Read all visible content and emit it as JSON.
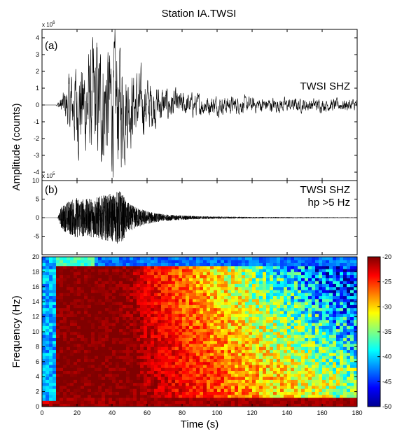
{
  "chart_data": [
    {
      "type": "line",
      "panel_tag": "(a)",
      "title": "Station IA.TWSI",
      "trace_label": "TWSI SHZ",
      "trace_label_line2": "",
      "ylabel": "Amplitude (counts)",
      "multiplier": "x 10",
      "multiplier_exp": "6",
      "xlim": [
        0,
        180
      ],
      "ylim": [
        -4.5,
        4.5
      ],
      "yticks": [
        "4",
        "3",
        "2",
        "1",
        "0",
        "-1",
        "-2",
        "-3",
        "-4"
      ],
      "ytick_values": [
        4,
        3,
        2,
        1,
        0,
        -1,
        -2,
        -3,
        -4
      ],
      "envelope": {
        "t": [
          0,
          8,
          12,
          16,
          20,
          25,
          30,
          35,
          40,
          45,
          50,
          55,
          60,
          65,
          70,
          80,
          90,
          100,
          120,
          140,
          160,
          180
        ],
        "amp": [
          0,
          0,
          0.8,
          2.0,
          3.0,
          3.2,
          4.2,
          4.0,
          4.3,
          4.0,
          2.5,
          2.2,
          1.7,
          1.4,
          1.1,
          0.8,
          0.7,
          0.6,
          0.5,
          0.45,
          0.4,
          0.4
        ]
      },
      "series_color": "#000000"
    },
    {
      "type": "line",
      "panel_tag": "(b)",
      "trace_label": "TWSI SHZ",
      "trace_label_line2": "hp >5 Hz",
      "multiplier": "x 10",
      "multiplier_exp": "5",
      "xlim": [
        0,
        180
      ],
      "ylim": [
        -10,
        10
      ],
      "yticks": [
        "10",
        "5",
        "0",
        "-5"
      ],
      "ytick_values": [
        10,
        5,
        0,
        -5
      ],
      "envelope": {
        "t": [
          0,
          9,
          11,
          15,
          20,
          25,
          30,
          35,
          40,
          45,
          48,
          52,
          56,
          60,
          65,
          70,
          80,
          90,
          100,
          120,
          140,
          160,
          180
        ],
        "amp": [
          0,
          0,
          3,
          4.5,
          5.5,
          5.0,
          5.5,
          6.0,
          6.5,
          7.5,
          4.5,
          3.2,
          2.5,
          1.8,
          1.2,
          0.9,
          0.6,
          0.4,
          0.3,
          0.2,
          0.15,
          0.12,
          0.1
        ]
      },
      "series_color": "#000000"
    },
    {
      "type": "heatmap",
      "xlabel": "Time (s)",
      "ylabel": "Frequency (Hz)",
      "xlim": [
        0,
        180
      ],
      "ylim": [
        0,
        20
      ],
      "xticks": [
        "0",
        "20",
        "40",
        "60",
        "80",
        "100",
        "120",
        "140",
        "160",
        "180"
      ],
      "xtick_values": [
        0,
        20,
        40,
        60,
        80,
        100,
        120,
        140,
        160,
        180
      ],
      "yticks": [
        "0",
        "2",
        "4",
        "6",
        "8",
        "10",
        "12",
        "14",
        "16",
        "18",
        "20"
      ],
      "ytick_values": [
        0,
        2,
        4,
        6,
        8,
        10,
        12,
        14,
        16,
        18,
        20
      ],
      "colorbar": {
        "range": [
          -50,
          -20
        ],
        "ticks": [
          "-20",
          "-25",
          "-30",
          "-35",
          "-40",
          "-45",
          "-50"
        ],
        "tick_values": [
          -20,
          -25,
          -30,
          -35,
          -40,
          -45,
          -50
        ],
        "colormap": "jet"
      },
      "signal_onset_s": 8,
      "noise_level_db": -44,
      "peak_level_db": -20
    }
  ]
}
